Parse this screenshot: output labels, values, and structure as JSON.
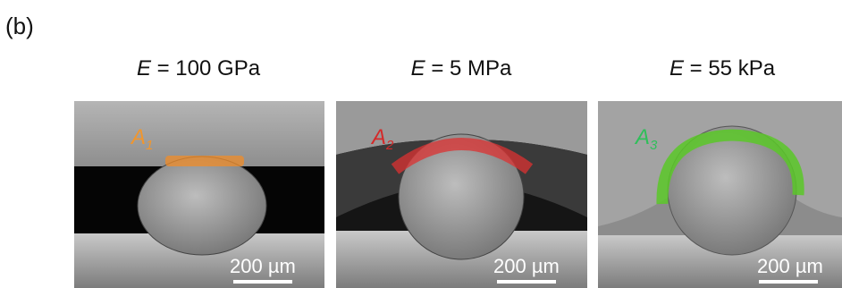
{
  "panel_label": "(b)",
  "panels": [
    {
      "title": {
        "symbol": "E",
        "text": "= 100 GPa"
      },
      "area_label": {
        "symbol": "A",
        "subscript": "1"
      },
      "scale_bar": "200 µm"
    },
    {
      "title": {
        "symbol": "E",
        "text": "= 5 MPa"
      },
      "area_label": {
        "symbol": "A",
        "subscript": "2"
      },
      "scale_bar": "200 µm"
    },
    {
      "title": {
        "symbol": "E",
        "text": "= 55 kPa"
      },
      "area_label": {
        "symbol": "A",
        "subscript": "3"
      },
      "scale_bar": "200 µm"
    }
  ]
}
